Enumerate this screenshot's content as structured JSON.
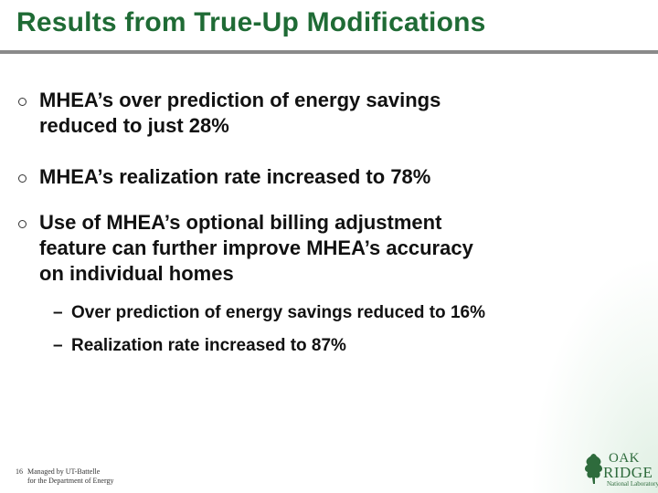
{
  "title": "Results from True-Up Modifications",
  "bullets": [
    {
      "lines": [
        "MHEA’s over prediction of energy savings",
        "reduced to just 28%"
      ]
    },
    {
      "lines": [
        "MHEA’s realization rate increased to 78%"
      ]
    },
    {
      "lines": [
        "Use of MHEA’s optional billing adjustment",
        "feature can further improve MHEA’s accuracy",
        "on individual homes"
      ]
    }
  ],
  "sub_bullets": [
    {
      "dash": "–",
      "text": "Over prediction of energy savings reduced to 16%"
    },
    {
      "dash": "–",
      "text": "Realization rate increased to 87%"
    }
  ],
  "footer": {
    "page_number": "16",
    "line1": "Managed by UT-Battelle",
    "line2": "for the Department of Energy"
  },
  "logo": {
    "word1": "OAK",
    "word2": "RIDGE",
    "word3": "National Laboratory",
    "color": "#2e6b3c"
  },
  "colors": {
    "title": "#1f6b35",
    "rule": "#8a8a8a"
  }
}
